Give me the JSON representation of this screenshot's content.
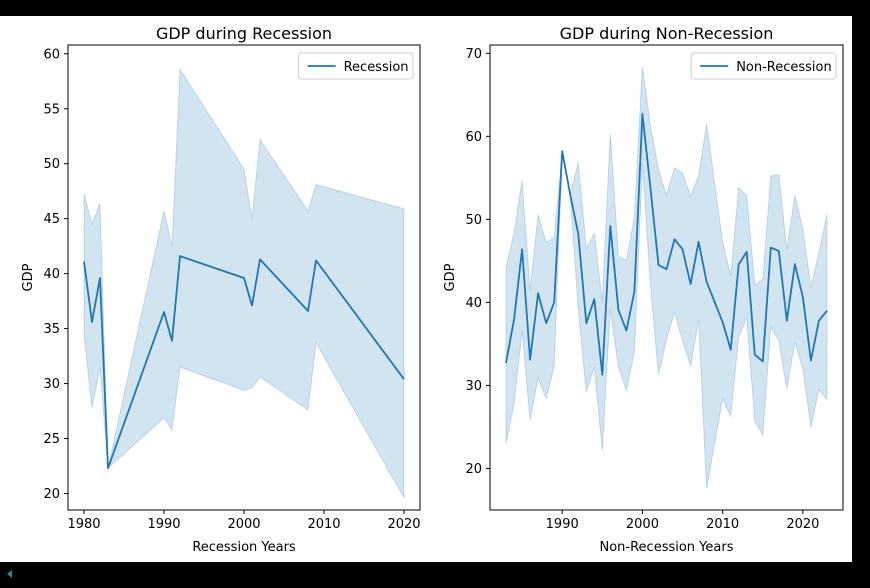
{
  "chart_data": [
    {
      "type": "line",
      "title": "GDP during Recession",
      "xlabel": "Recession Years",
      "ylabel": "GDP",
      "xlim": [
        1978,
        2022
      ],
      "ylim": [
        18.5,
        60.8
      ],
      "xticks": [
        1980,
        1990,
        2000,
        2010,
        2020
      ],
      "yticks": [
        20,
        25,
        30,
        35,
        40,
        45,
        50,
        55,
        60
      ],
      "legend": {
        "position": "top-right",
        "entries": [
          "Recession"
        ]
      },
      "line_color": "#1f77b4",
      "band_color": "#1f77b4",
      "grid": false,
      "series": [
        {
          "name": "Recession",
          "x": [
            1980,
            1981,
            1982,
            1983,
            1990,
            1991,
            1992,
            2000,
            2001,
            2002,
            2008,
            2009,
            2020
          ],
          "y": [
            41.1,
            35.6,
            39.6,
            22.3,
            36.5,
            33.9,
            41.6,
            39.6,
            37.1,
            41.3,
            36.6,
            41.2,
            30.4
          ],
          "lower": [
            34.5,
            27.8,
            31.5,
            22.3,
            26.9,
            25.8,
            31.5,
            29.4,
            29.6,
            30.6,
            27.6,
            33.7,
            19.6
          ],
          "upper": [
            47.3,
            44.5,
            46.4,
            22.3,
            45.7,
            42.5,
            58.6,
            49.5,
            45.0,
            52.2,
            45.7,
            48.1,
            45.9
          ]
        }
      ]
    },
    {
      "type": "line",
      "title": "GDP during Non-Recession",
      "xlabel": "Non-Recession Years",
      "ylabel": "GDP",
      "xlim": [
        1981,
        2025
      ],
      "ylim": [
        15,
        71
      ],
      "xticks": [
        1990,
        2000,
        2010,
        2020
      ],
      "yticks": [
        20,
        30,
        40,
        50,
        60,
        70
      ],
      "legend": {
        "position": "top-right",
        "entries": [
          "Non-Recession"
        ]
      },
      "line_color": "#1f77b4",
      "band_color": "#1f77b4",
      "grid": false,
      "series": [
        {
          "name": "Non-Recession",
          "x": [
            1983,
            1984,
            1985,
            1986,
            1987,
            1988,
            1989,
            1990,
            1991,
            1992,
            1993,
            1994,
            1995,
            1996,
            1997,
            1998,
            1999,
            2000,
            2001,
            2002,
            2003,
            2004,
            2005,
            2006,
            2007,
            2008,
            2010,
            2011,
            2012,
            2013,
            2014,
            2015,
            2016,
            2017,
            2018,
            2019,
            2020,
            2021,
            2022,
            2023
          ],
          "y": [
            32.7,
            38.0,
            46.4,
            33.1,
            41.1,
            37.5,
            40.0,
            58.2,
            53.0,
            48.2,
            37.5,
            40.4,
            31.3,
            49.2,
            39.1,
            36.6,
            41.3,
            62.7,
            53.7,
            44.5,
            44.0,
            47.6,
            46.4,
            42.2,
            47.3,
            42.5,
            37.6,
            34.3,
            44.6,
            46.1,
            33.7,
            32.9,
            46.6,
            46.2,
            37.8,
            44.6,
            40.6,
            33.0,
            37.8,
            39.0
          ],
          "lower": [
            23.0,
            27.8,
            36.6,
            25.8,
            30.9,
            28.4,
            32.3,
            58.2,
            53.0,
            39.2,
            29.2,
            32.2,
            22.2,
            39.2,
            32.2,
            29.4,
            34.0,
            56.8,
            42.0,
            31.3,
            35.5,
            38.8,
            35.4,
            32.3,
            37.9,
            17.6,
            28.4,
            26.3,
            35.8,
            38.2,
            25.7,
            24.0,
            37.1,
            35.4,
            29.6,
            35.2,
            32.0,
            25.0,
            29.5,
            28.3
          ],
          "upper": [
            44.2,
            48.4,
            54.7,
            41.5,
            50.6,
            47.2,
            47.8,
            58.2,
            53.0,
            56.8,
            46.5,
            48.3,
            40.1,
            60.3,
            45.5,
            45.1,
            50.3,
            68.4,
            61.3,
            56.0,
            52.9,
            56.2,
            55.6,
            52.8,
            55.2,
            61.5,
            47.2,
            43.2,
            53.8,
            52.9,
            42.1,
            42.8,
            55.2,
            55.4,
            46.4,
            52.9,
            48.8,
            41.8,
            46.0,
            50.6
          ]
        }
      ]
    }
  ]
}
